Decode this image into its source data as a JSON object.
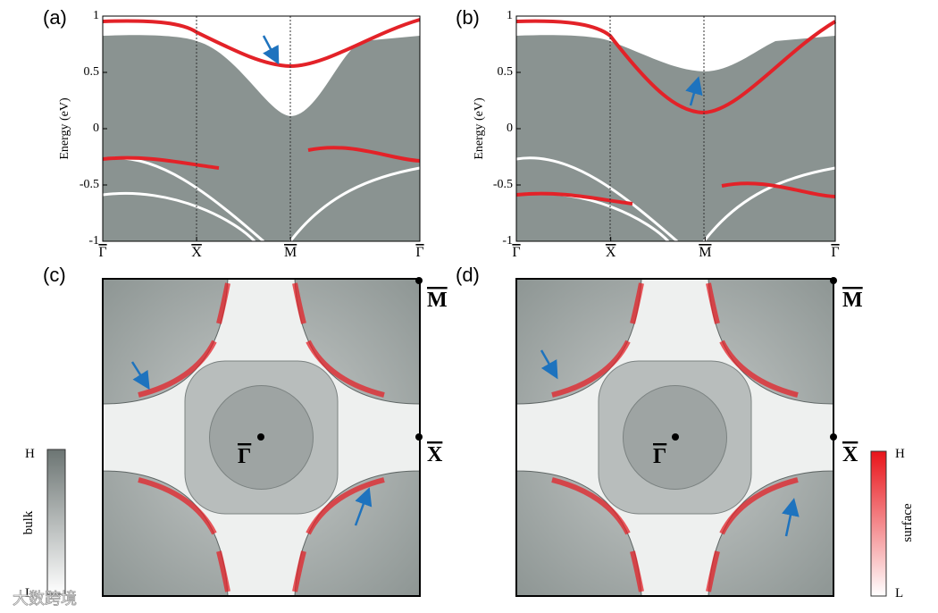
{
  "panels": [
    {
      "label": "(a)",
      "y_axis_label": "Energy (eV)",
      "yticks": [
        1,
        0.5,
        0,
        -0.5,
        -1
      ],
      "kpoints": [
        "Γ",
        "X",
        "M",
        "Γ"
      ]
    },
    {
      "label": "(b)",
      "y_axis_label": "Energy (eV)",
      "yticks": [
        1,
        0.5,
        0,
        -0.5,
        -1
      ],
      "kpoints": [
        "Γ",
        "X",
        "M",
        "Γ"
      ]
    },
    {
      "label": "(c)",
      "points": [
        "M",
        "X",
        "Γ"
      ]
    },
    {
      "label": "(d)",
      "points": [
        "M",
        "X",
        "Γ"
      ]
    }
  ],
  "colorbars": [
    {
      "name": "bulk",
      "high": "H",
      "low": "L"
    },
    {
      "name": "surface",
      "high": "H",
      "low": "L"
    }
  ],
  "watermark": "大数跨境"
}
